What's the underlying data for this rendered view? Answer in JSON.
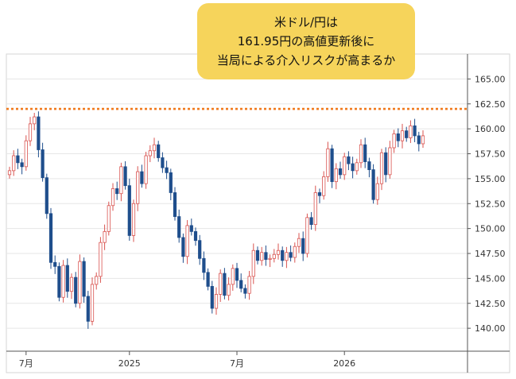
{
  "chart_data": {
    "type": "candlestick",
    "currency_pair": "USD/JPY",
    "y_ticks": [
      "165.00",
      "162.50",
      "160.00",
      "157.50",
      "155.00",
      "152.50",
      "150.00",
      "147.50",
      "145.00",
      "142.50",
      "140.00"
    ],
    "ylim": [
      137.7,
      167.5
    ],
    "x_ticks": [
      "7月",
      "2025",
      "7月",
      "2026"
    ],
    "x_tick_weeks": [
      4,
      29,
      55,
      81
    ],
    "reference_line": {
      "value": 162.0,
      "color": "#f07a1e"
    },
    "colors": {
      "up": "#d9534f",
      "down": "#1f4e8c",
      "grid": "#e6e6e6",
      "axis": "#555555"
    },
    "annotation": {
      "lines": [
        "米ドル/円は",
        "161.95円の高値更新後に",
        "当局による介入リスクが高まるか"
      ],
      "background": "#f6d45b"
    },
    "closes": [
      155.8,
      157.3,
      156.6,
      156.2,
      158.8,
      160.5,
      161.2,
      157.9,
      155.1,
      151.5,
      146.6,
      146.2,
      143.1,
      146.3,
      143.7,
      145.1,
      142.5,
      146.7,
      143.2,
      140.7,
      144.4,
      145.2,
      148.6,
      149.7,
      152.3,
      154.0,
      153.5,
      156.2,
      154.3,
      149.3,
      152.5,
      155.7,
      154.5,
      157.3,
      157.8,
      158.4,
      157.1,
      156.1,
      155.6,
      153.6,
      151.2,
      149.1,
      147.2,
      150.3,
      149.7,
      148.8,
      147.0,
      145.6,
      144.2,
      142.0,
      143.4,
      145.5,
      143.3,
      144.4,
      146.0,
      144.8,
      144.0,
      143.5,
      145.2,
      147.8,
      146.8,
      147.6,
      146.9,
      147.0,
      147.4,
      147.8,
      146.8,
      147.6,
      147.1,
      148.2,
      149.0,
      147.5,
      151.1,
      150.4,
      153.6,
      153.3,
      155.2,
      158.0,
      154.7,
      156.0,
      155.4,
      157.2,
      156.5,
      155.8,
      156.6,
      158.4,
      156.7,
      155.9,
      152.9,
      154.5,
      157.6,
      155.4,
      158.1,
      159.5,
      158.8,
      159.8,
      159.1,
      160.3,
      159.3,
      158.5,
      159.3
    ]
  }
}
